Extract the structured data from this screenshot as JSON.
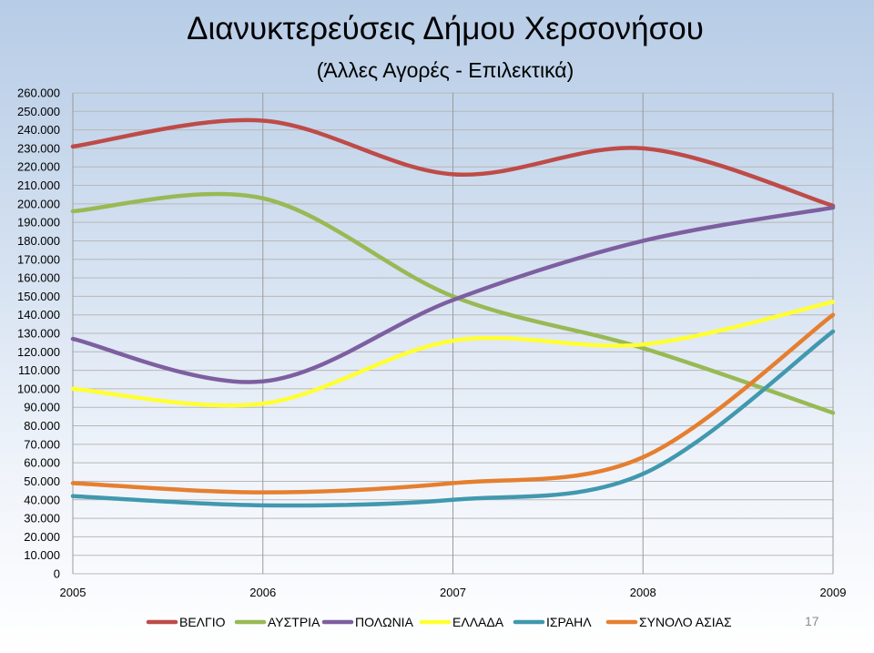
{
  "chart_data": {
    "type": "line",
    "title": "Διανυκτερεύσεις Δήμου Χερσονήσου",
    "subtitle": "(Άλλες Αγορές - Επιλεκτικά)",
    "x": [
      "2005",
      "2006",
      "2007",
      "2008",
      "2009"
    ],
    "ylim": [
      0,
      260000
    ],
    "ytick_step": 10000,
    "ytick_labels": [
      "0",
      "10.000",
      "20.000",
      "30.000",
      "40.000",
      "50.000",
      "60.000",
      "70.000",
      "80.000",
      "90.000",
      "100.000",
      "110.000",
      "120.000",
      "130.000",
      "140.000",
      "150.000",
      "160.000",
      "170.000",
      "180.000",
      "190.000",
      "200.000",
      "210.000",
      "220.000",
      "230.000",
      "240.000",
      "250.000",
      "260.000"
    ],
    "grid": true,
    "smooth": true,
    "legend_position": "bottom",
    "series": [
      {
        "name": "ΒΕΛΓΙΟ",
        "color": "#be4b48",
        "values": [
          231000,
          245000,
          216000,
          230000,
          199000
        ]
      },
      {
        "name": "ΑΥΣΤΡΙΑ",
        "color": "#98b954",
        "values": [
          196000,
          203000,
          150000,
          122000,
          87000
        ]
      },
      {
        "name": "ΠΟΛΩΝΙΑ",
        "color": "#7d5fa0",
        "values": [
          127000,
          104000,
          148000,
          180000,
          198000
        ]
      },
      {
        "name": "ΕΛΛΑΔΑ",
        "color": "#ffff33",
        "values": [
          100000,
          92000,
          126000,
          124000,
          147000
        ]
      },
      {
        "name": "ΙΣΡΑΗΛ",
        "color": "#4198af",
        "values": [
          42000,
          37000,
          40000,
          54000,
          131000
        ]
      },
      {
        "name": "ΣΥΝΟΛΟ ΑΣΙΑΣ",
        "color": "#e57f30",
        "values": [
          49000,
          44000,
          49000,
          63000,
          140000
        ]
      }
    ]
  },
  "page_number": "17"
}
